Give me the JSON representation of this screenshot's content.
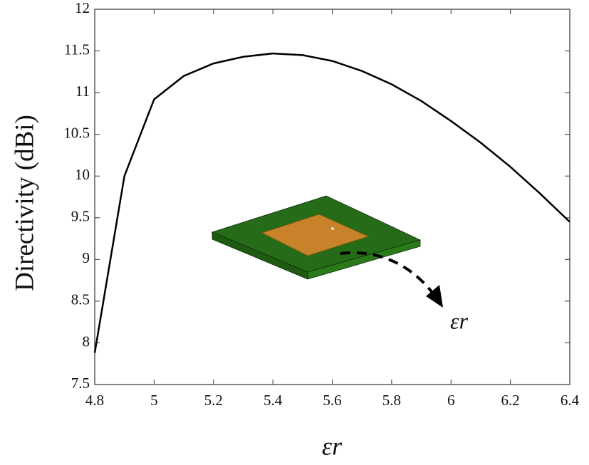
{
  "chart_data": {
    "type": "line",
    "x_label": "εr",
    "y_label": "Directivity (dBi)",
    "annotation": "εr",
    "x": [
      4.8,
      4.9,
      5.0,
      5.1,
      5.2,
      5.3,
      5.4,
      5.5,
      5.6,
      5.7,
      5.8,
      5.9,
      6.0,
      6.1,
      6.2,
      6.3,
      6.4
    ],
    "values": [
      7.88,
      10.0,
      10.92,
      11.2,
      11.35,
      11.43,
      11.47,
      11.45,
      11.38,
      11.26,
      11.1,
      10.9,
      10.66,
      10.4,
      10.11,
      9.79,
      9.45
    ],
    "color": "#000000",
    "xlim": [
      4.8,
      6.4
    ],
    "xticks": [
      4.8,
      5,
      5.2,
      5.4,
      5.6,
      5.8,
      6,
      6.2,
      6.4
    ],
    "ylim": [
      7.5,
      12
    ],
    "yticks": [
      7.5,
      8,
      8.5,
      9,
      9.5,
      10,
      10.5,
      11,
      11.5,
      12
    ]
  }
}
